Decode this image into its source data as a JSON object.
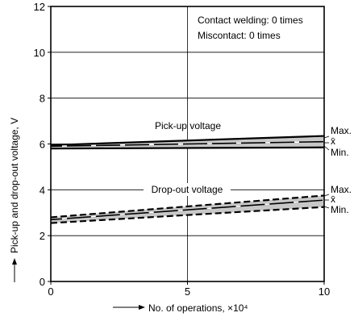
{
  "chart_data": {
    "type": "line",
    "xlabel": "No. of operations, ×10⁴",
    "ylabel": "Pick-up and drop-out voltage, V",
    "xlim": [
      0,
      10
    ],
    "ylim": [
      0,
      12
    ],
    "xticks": [
      "0",
      "5",
      "10"
    ],
    "yticks": [
      "0",
      "2",
      "4",
      "6",
      "8",
      "10",
      "12"
    ],
    "grid": "major only (x every 5, y every 2)",
    "annotations": [
      "Contact welding: 0 times",
      "Miscontact: 0 times"
    ],
    "bands": [
      {
        "label": "Pick-up voltage",
        "style": "solid",
        "series": [
          {
            "name": "Max.",
            "x": [
              0,
              10
            ],
            "y": [
              5.95,
              6.35
            ]
          },
          {
            "name": "x̄",
            "x": [
              0,
              10
            ],
            "y": [
              5.9,
              6.1
            ]
          },
          {
            "name": "Min.",
            "x": [
              0,
              10
            ],
            "y": [
              5.8,
              5.85
            ]
          }
        ]
      },
      {
        "label": "Drop-out voltage",
        "style": "dashed",
        "series": [
          {
            "name": "Max.",
            "x": [
              0,
              10
            ],
            "y": [
              2.8,
              3.75
            ]
          },
          {
            "name": "x̄",
            "x": [
              0,
              10
            ],
            "y": [
              2.7,
              3.55
            ]
          },
          {
            "name": "Min.",
            "x": [
              0,
              10
            ],
            "y": [
              2.55,
              3.25
            ]
          }
        ]
      }
    ],
    "right_labels": [
      "Max.",
      "x̄",
      "Min."
    ]
  },
  "colors": {
    "line": "#000000",
    "band_fill": "#c8c8c8",
    "mean_dash": "#ffffff"
  }
}
